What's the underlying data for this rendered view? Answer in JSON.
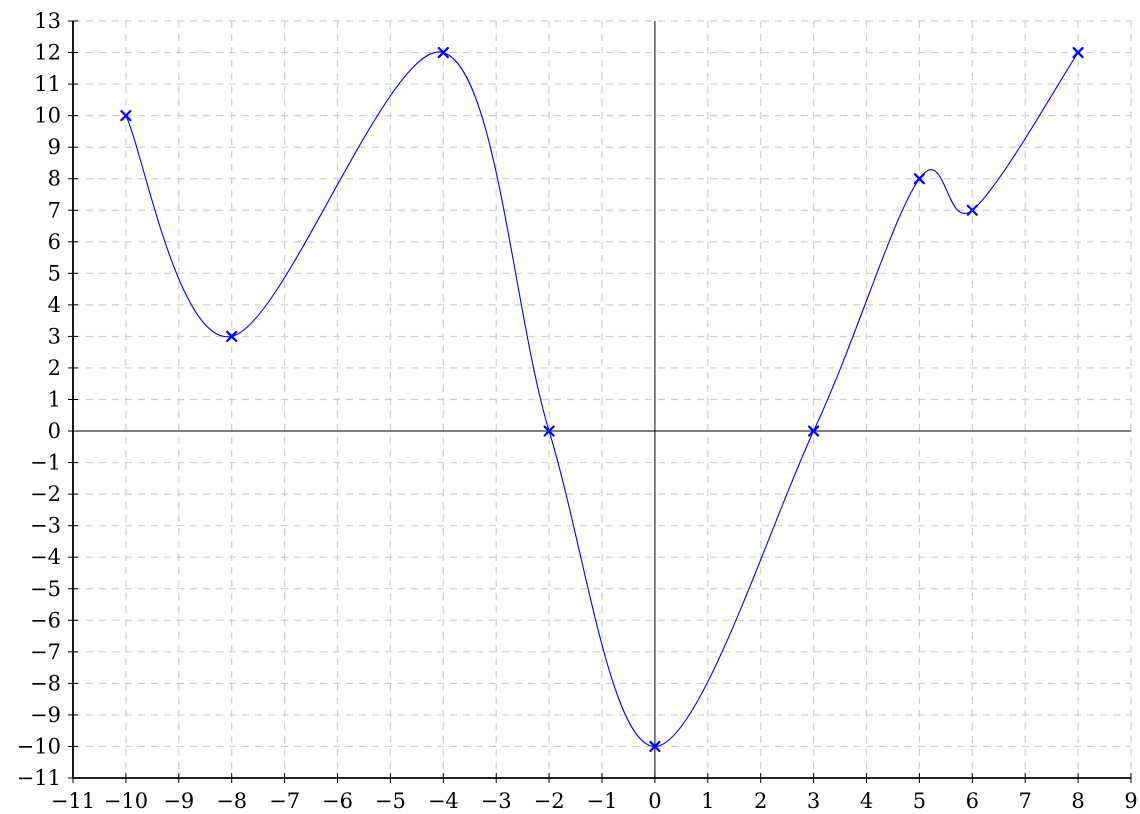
{
  "chart_data": {
    "type": "line",
    "title": "",
    "xlabel": "",
    "ylabel": "",
    "xlim": [
      -11,
      9
    ],
    "ylim": [
      -11,
      13
    ],
    "grid": true,
    "x_ticks": [
      "−11",
      "−10",
      "−9",
      "−8",
      "−7",
      "−6",
      "−5",
      "−4",
      "−3",
      "−2",
      "−1",
      "0",
      "1",
      "2",
      "3",
      "4",
      "5",
      "6",
      "7",
      "8",
      "9"
    ],
    "y_ticks": [
      "−11",
      "−10",
      "−9",
      "−8",
      "−7",
      "−6",
      "−5",
      "−4",
      "−3",
      "−2",
      "−1",
      "0",
      "1",
      "2",
      "3",
      "4",
      "5",
      "6",
      "7",
      "8",
      "9",
      "10",
      "11",
      "12",
      "13"
    ],
    "series": [
      {
        "color": "#0000ff",
        "marker": "x",
        "interpolation": "smooth",
        "points": [
          {
            "x": -10,
            "y": 10
          },
          {
            "x": -8,
            "y": 3
          },
          {
            "x": -4,
            "y": 12
          },
          {
            "x": -2,
            "y": 0
          },
          {
            "x": 0,
            "y": -10
          },
          {
            "x": 3,
            "y": 0
          },
          {
            "x": 5,
            "y": 8
          },
          {
            "x": 6,
            "y": 7
          },
          {
            "x": 8,
            "y": 12
          }
        ]
      }
    ]
  }
}
